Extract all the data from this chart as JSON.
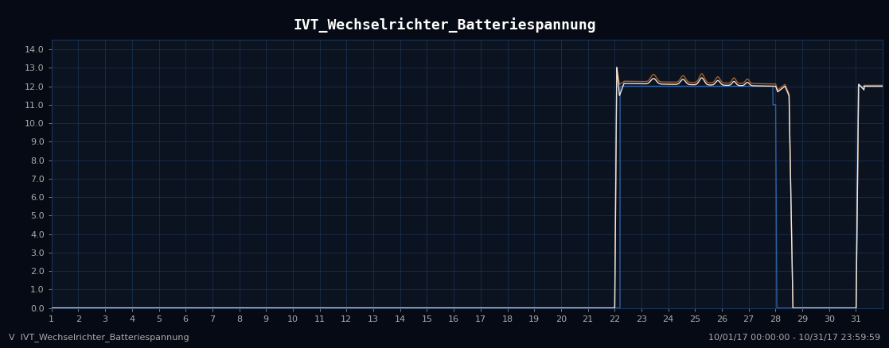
{
  "title": "IVT_Wechselrichter_Batteriespannung",
  "background_color": "#060a14",
  "plot_bg_color": "#0b1220",
  "grid_color": "#1a3558",
  "title_color": "#ffffff",
  "tick_color": "#aaaaaa",
  "xlabel_bottom": "10/01/17 00:00:00 - 10/31/17 23:59:59",
  "legend_label": "IVT_Wechselrichter_Batteriespannung",
  "legend_symbol": "V",
  "ylim": [
    0.0,
    14.5
  ],
  "xlim": [
    1,
    32
  ],
  "yticks": [
    0.0,
    1.0,
    2.0,
    3.0,
    4.0,
    5.0,
    6.0,
    7.0,
    8.0,
    9.0,
    10.0,
    11.0,
    12.0,
    13.0,
    14.0
  ],
  "xticks": [
    1,
    2,
    3,
    4,
    5,
    6,
    7,
    8,
    9,
    10,
    11,
    12,
    13,
    14,
    15,
    16,
    17,
    18,
    19,
    20,
    21,
    22,
    23,
    24,
    25,
    26,
    27,
    28,
    29,
    30,
    31
  ],
  "line_color_white": "#e8e8e8",
  "line_color_blue": "#3060a0",
  "line_color_brown": "#b06020",
  "line_width": 1.0
}
